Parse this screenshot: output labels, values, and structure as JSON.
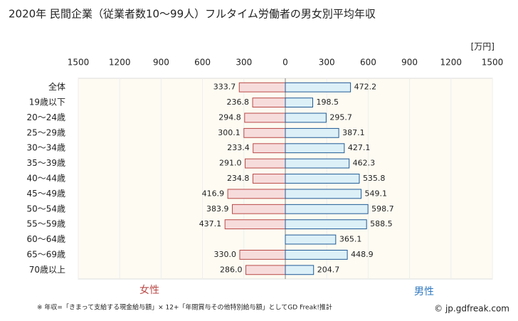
{
  "chart_data": {
    "type": "butterfly-bar",
    "title": "2020年 民間企業（従業者数10～99人）フルタイム労働者の男女別平均年収",
    "unit_label": "[万円]",
    "categories": [
      "全体",
      "19歳以下",
      "20～24歳",
      "25～29歳",
      "30～34歳",
      "35～39歳",
      "40～44歳",
      "45～49歳",
      "50～54歳",
      "55～59歳",
      "60～64歳",
      "65～69歳",
      "70歳以上"
    ],
    "series": [
      {
        "name": "女性",
        "side": "left",
        "color": "#f7dcdc",
        "edge": "#b94a48",
        "text_color": "#b94a48",
        "values": [
          333.7,
          236.8,
          294.8,
          300.1,
          233.4,
          291.0,
          234.8,
          416.9,
          383.9,
          437.1,
          null,
          330.0,
          286.0
        ],
        "value_labels": [
          "333.7",
          "236.8",
          "294.8",
          "300.1",
          "233.4",
          "291.0",
          "234.8",
          "416.9",
          "383.9",
          "437.1",
          null,
          "330.0",
          "286.0"
        ]
      },
      {
        "name": "男性",
        "side": "right",
        "color": "#dcf0f8",
        "edge": "#1f5a96",
        "text_color": "#2e78c0",
        "values": [
          472.2,
          198.5,
          295.7,
          387.1,
          427.1,
          462.3,
          535.8,
          549.1,
          598.7,
          588.5,
          365.1,
          448.9,
          204.7
        ],
        "value_labels": [
          "472.2",
          "198.5",
          "295.7",
          "387.1",
          "427.1",
          "462.3",
          "535.8",
          "549.1",
          "598.7",
          "588.5",
          "365.1",
          "448.9",
          "204.7"
        ]
      }
    ],
    "xlim": [
      0,
      1500
    ],
    "xticks": [
      0,
      300,
      600,
      900,
      1200,
      1500
    ],
    "grid": true,
    "footnote": "※ 年収=「きまって支給する現金給与額」× 12+「年間賞与その他特別給与額」としてGD Freak!推計",
    "credit": "© jp.gdfreak.com"
  }
}
